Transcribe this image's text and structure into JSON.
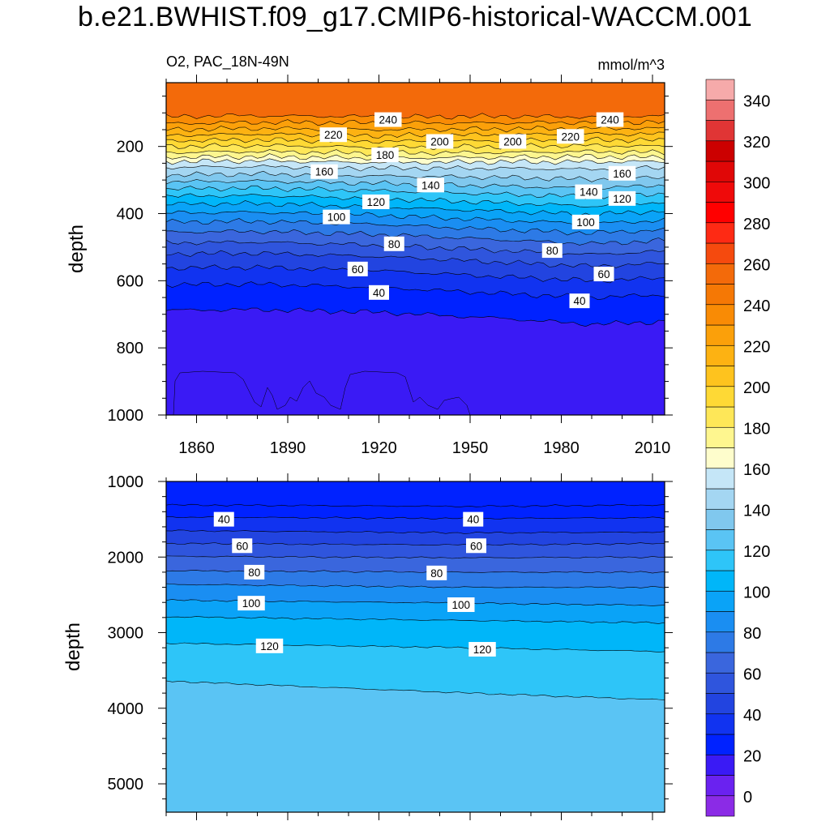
{
  "title": "b.e21.BWHIST.f09_g17.CMIP6-historical-WACCM.001",
  "chart_data": {
    "type": "heatmap",
    "variable_label": "O2, PAC_18N-49N",
    "units_label": "mmol/m^3",
    "colorbar": {
      "levels": [
        0,
        10,
        20,
        30,
        40,
        50,
        60,
        70,
        80,
        90,
        100,
        110,
        120,
        130,
        140,
        150,
        160,
        170,
        180,
        190,
        200,
        210,
        220,
        230,
        240,
        250,
        260,
        270,
        280,
        290,
        300,
        310,
        320,
        330,
        340,
        350
      ],
      "tick_labels": [
        "0",
        "20",
        "40",
        "60",
        "80",
        "100",
        "120",
        "140",
        "160",
        "180",
        "200",
        "220",
        "240",
        "260",
        "280",
        "300",
        "320",
        "340"
      ],
      "colors": [
        "#8b2be6",
        "#6a22f0",
        "#3a1af5",
        "#0022ff",
        "#1133f0",
        "#2244e0",
        "#2f55dd",
        "#3a66dd",
        "#2d7ae6",
        "#1a8ef2",
        "#0aa3f7",
        "#00b6f9",
        "#2ec5f8",
        "#5ac4f4",
        "#80c8ee",
        "#a4d6f2",
        "#c5e6f7",
        "#fefdcc",
        "#fef68f",
        "#fee758",
        "#fed935",
        "#fec31e",
        "#fdb212",
        "#fba00a",
        "#f98b05",
        "#f57805",
        "#f36a0a",
        "#f54a0e",
        "#fe2a14",
        "#ff0000",
        "#ef0a0a",
        "#e00707",
        "#cc0000",
        "#e03535",
        "#ed7070",
        "#f6aaaa"
      ]
    },
    "upper_panel": {
      "x_tick_labels": [
        "1860",
        "1890",
        "1920",
        "1950",
        "1980",
        "2010"
      ],
      "x_ticks": [
        1860,
        1890,
        1920,
        1950,
        1980,
        2010
      ],
      "x_range": [
        1850,
        2014
      ],
      "y_label": "depth",
      "y_tick_labels": [
        "200",
        "400",
        "600",
        "800",
        "1000"
      ],
      "y_ticks": [
        200,
        400,
        600,
        800,
        1000
      ],
      "y_range": [
        10,
        1000
      ],
      "contour_labels": [
        {
          "text": "240",
          "year": 1923,
          "depth": 120
        },
        {
          "text": "240",
          "year": 1996,
          "depth": 120
        },
        {
          "text": "220",
          "year": 1905,
          "depth": 165
        },
        {
          "text": "200",
          "year": 1940,
          "depth": 185
        },
        {
          "text": "180",
          "year": 1922,
          "depth": 225
        },
        {
          "text": "220",
          "year": 1983,
          "depth": 170
        },
        {
          "text": "200",
          "year": 1964,
          "depth": 185
        },
        {
          "text": "160",
          "year": 1902,
          "depth": 275
        },
        {
          "text": "140",
          "year": 1937,
          "depth": 315
        },
        {
          "text": "160",
          "year": 2000,
          "depth": 280
        },
        {
          "text": "120",
          "year": 1919,
          "depth": 365
        },
        {
          "text": "140",
          "year": 1989,
          "depth": 335
        },
        {
          "text": "120",
          "year": 2000,
          "depth": 355
        },
        {
          "text": "100",
          "year": 1906,
          "depth": 410
        },
        {
          "text": "100",
          "year": 1988,
          "depth": 425
        },
        {
          "text": "80",
          "year": 1925,
          "depth": 490
        },
        {
          "text": "80",
          "year": 1977,
          "depth": 510
        },
        {
          "text": "60",
          "year": 1913,
          "depth": 565
        },
        {
          "text": "60",
          "year": 1994,
          "depth": 580
        },
        {
          "text": "40",
          "year": 1920,
          "depth": 635
        },
        {
          "text": "40",
          "year": 1986,
          "depth": 660
        }
      ]
    },
    "lower_panel": {
      "y_label": "depth",
      "y_tick_labels": [
        "1000",
        "2000",
        "3000",
        "4000",
        "5000"
      ],
      "y_ticks": [
        1000,
        2000,
        3000,
        4000,
        5000
      ],
      "y_range": [
        1000,
        5375
      ],
      "contour_labels": [
        {
          "text": "40",
          "year": 1869,
          "depth": 1500
        },
        {
          "text": "40",
          "year": 1951,
          "depth": 1500
        },
        {
          "text": "60",
          "year": 1875,
          "depth": 1850
        },
        {
          "text": "60",
          "year": 1952,
          "depth": 1850
        },
        {
          "text": "80",
          "year": 1879,
          "depth": 2200
        },
        {
          "text": "80",
          "year": 1939,
          "depth": 2210
        },
        {
          "text": "100",
          "year": 1878,
          "depth": 2610
        },
        {
          "text": "100",
          "year": 1947,
          "depth": 2630
        },
        {
          "text": "120",
          "year": 1884,
          "depth": 3175
        },
        {
          "text": "120",
          "year": 1954,
          "depth": 3220
        }
      ]
    }
  }
}
